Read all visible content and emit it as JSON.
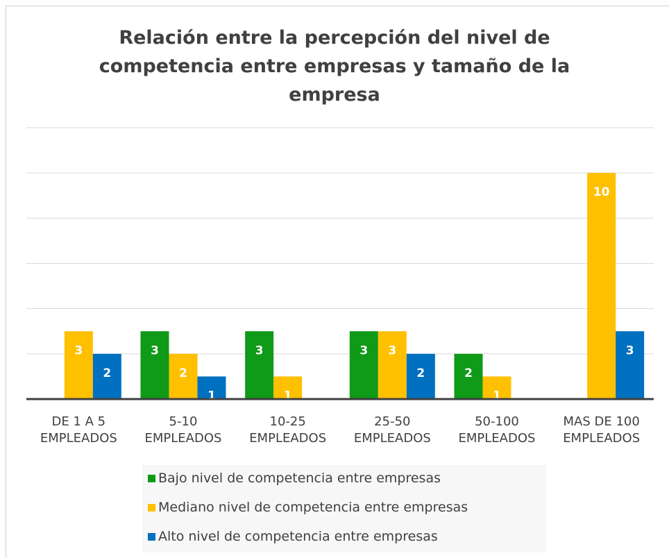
{
  "chart_data": {
    "type": "bar",
    "title": "Relación entre la percepción del nivel de competencia entre empresas y tamaño de la empresa",
    "categories": [
      "DE 1 A 5\nEMPLEADOS",
      "5-10\nEMPLEADOS",
      "10-25\nEMPLEADOS",
      "25-50\nEMPLEADOS",
      "50-100\nEMPLEADOS",
      "MAS DE 100\nEMPLEADOS"
    ],
    "series": [
      {
        "name": "Bajo nivel de competencia entre empresas",
        "color": "#0f9a17",
        "values": [
          null,
          3,
          3,
          3,
          2,
          null
        ]
      },
      {
        "name": "Mediano nivel de competencia entre empresas",
        "color": "#ffc000",
        "values": [
          3,
          2,
          1,
          3,
          1,
          10
        ]
      },
      {
        "name": "Alto nivel de competencia entre empresas",
        "color": "#0070c0",
        "values": [
          2,
          1,
          null,
          2,
          null,
          3
        ]
      }
    ],
    "ylim": [
      0,
      12
    ],
    "yticks": [
      0,
      2,
      4,
      6,
      8,
      10,
      12
    ],
    "grid": true,
    "legend": "bottom"
  }
}
